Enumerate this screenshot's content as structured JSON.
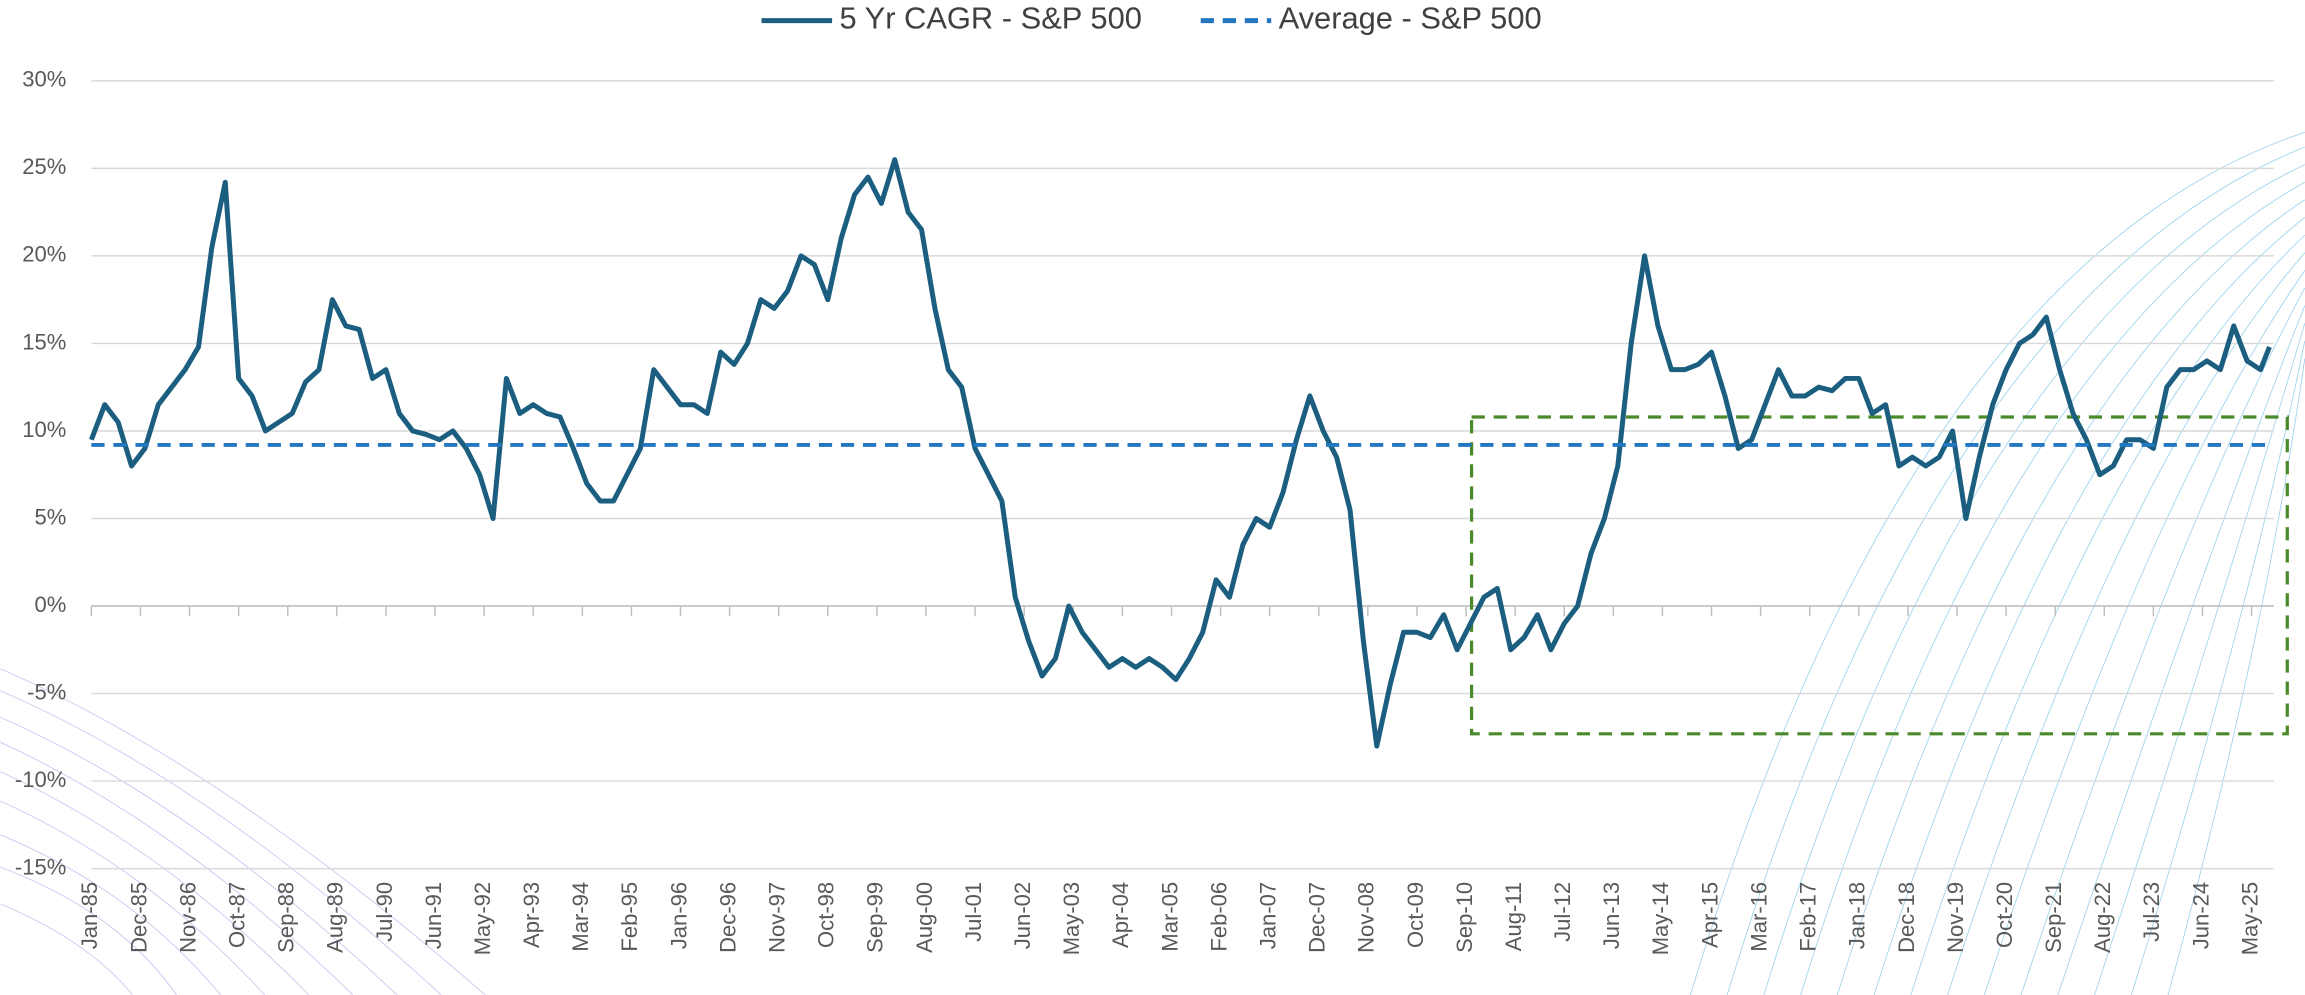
{
  "chart_data": {
    "type": "line",
    "x": [
      1985.0,
      1985.25,
      1985.5,
      1985.75,
      1986.0,
      1986.25,
      1986.5,
      1986.75,
      1987.0,
      1987.25,
      1987.5,
      1987.75,
      1988.0,
      1988.25,
      1988.5,
      1988.75,
      1989.0,
      1989.25,
      1989.5,
      1989.75,
      1990.0,
      1990.25,
      1990.5,
      1990.75,
      1991.0,
      1991.25,
      1991.5,
      1991.75,
      1992.0,
      1992.25,
      1992.5,
      1992.75,
      1993.0,
      1993.25,
      1993.5,
      1993.75,
      1994.0,
      1994.25,
      1994.5,
      1994.75,
      1995.0,
      1995.25,
      1995.5,
      1995.75,
      1996.0,
      1996.25,
      1996.5,
      1996.75,
      1997.0,
      1997.25,
      1997.5,
      1997.75,
      1998.0,
      1998.25,
      1998.5,
      1998.75,
      1999.0,
      1999.25,
      1999.5,
      1999.75,
      2000.0,
      2000.25,
      2000.5,
      2000.75,
      2001.0,
      2001.25,
      2001.5,
      2001.75,
      2002.0,
      2002.25,
      2002.5,
      2002.75,
      2003.0,
      2003.25,
      2003.5,
      2003.75,
      2004.0,
      2004.25,
      2004.5,
      2004.75,
      2005.0,
      2005.25,
      2005.5,
      2005.75,
      2006.0,
      2006.25,
      2006.5,
      2006.75,
      2007.0,
      2007.25,
      2007.5,
      2007.75,
      2008.0,
      2008.25,
      2008.5,
      2008.75,
      2009.0,
      2009.25,
      2009.5,
      2009.75,
      2010.0,
      2010.25,
      2010.5,
      2010.75,
      2011.0,
      2011.25,
      2011.5,
      2011.75,
      2012.0,
      2012.25,
      2012.5,
      2012.75,
      2013.0,
      2013.25,
      2013.5,
      2013.75,
      2014.0,
      2014.25,
      2014.5,
      2014.75,
      2015.0,
      2015.25,
      2015.5,
      2015.75,
      2016.0,
      2016.25,
      2016.5,
      2016.75,
      2017.0,
      2017.25,
      2017.5,
      2017.75,
      2018.0,
      2018.25,
      2018.5,
      2018.75,
      2019.0,
      2019.25,
      2019.5,
      2019.75,
      2020.0,
      2020.25,
      2020.5,
      2020.75,
      2021.0,
      2021.25,
      2021.5,
      2021.75,
      2022.0,
      2022.25,
      2022.5,
      2022.75,
      2023.0,
      2023.25,
      2023.5,
      2023.75,
      2024.0,
      2024.25,
      2024.5,
      2024.75,
      2025.0,
      2025.25,
      2025.5,
      2025.667
    ],
    "series": [
      {
        "name": "5 Yr CAGR - S&P 500",
        "color": "#1b5e80",
        "dash": false,
        "values": [
          9.5,
          11.5,
          10.5,
          8,
          9,
          11.5,
          12.5,
          13.5,
          14.8,
          20.5,
          24.2,
          13,
          12,
          10,
          10.5,
          11,
          12.8,
          13.5,
          17.5,
          16,
          15.8,
          13,
          13.5,
          11,
          10,
          9.8,
          9.5,
          10,
          9,
          7.5,
          5,
          13,
          11,
          11.5,
          11,
          10.8,
          9,
          7,
          6,
          6,
          7.5,
          9,
          13.5,
          12.5,
          11.5,
          11.5,
          11,
          14.5,
          13.8,
          15,
          17.5,
          17,
          18,
          20,
          19.5,
          17.5,
          21,
          23.5,
          24.5,
          23,
          25.5,
          22.5,
          21.5,
          17,
          13.5,
          12.5,
          9,
          7.5,
          6,
          0.5,
          -2,
          -4,
          -3,
          0,
          -1.5,
          -2.5,
          -3.5,
          -3,
          -3.5,
          -3,
          -3.5,
          -4.2,
          -3,
          -1.5,
          1.5,
          0.5,
          3.5,
          5,
          4.5,
          6.5,
          9.5,
          12,
          10,
          8.5,
          5.5,
          -2,
          -8,
          -4.5,
          -1.5,
          -1.5,
          -1.8,
          -0.5,
          -2.5,
          -1,
          0.5,
          1,
          -2.5,
          -1.8,
          -0.5,
          -2.5,
          -1,
          0,
          3,
          5,
          8,
          15,
          20,
          16,
          13.5,
          13.5,
          13.8,
          14.5,
          12,
          9,
          9.5,
          11.5,
          13.5,
          12,
          12,
          12.5,
          12.3,
          13,
          13,
          11,
          11.5,
          8,
          8.5,
          8,
          8.5,
          10,
          5,
          8.5,
          11.5,
          13.5,
          15,
          15.5,
          16.5,
          13.5,
          11,
          9.5,
          7.5,
          8,
          9.5,
          9.5,
          9,
          12.5,
          13.5,
          13.5,
          14,
          13.5,
          16,
          14,
          13.5,
          14.8
        ]
      },
      {
        "name": "Average - S&P 500",
        "color": "#2277c0",
        "dash": true,
        "x": [
          1985.0,
          2025.667
        ],
        "values": [
          9.2,
          9.2
        ]
      }
    ],
    "highlight": {
      "xlim": [
        2010.77,
        2026.0
      ],
      "ylim": [
        -7.3,
        10.8
      ],
      "color": "#4a8a2a"
    },
    "xlim": [
      1985.0,
      2025.75
    ],
    "xticks": [
      {
        "value": 1985.0,
        "label": "Jan-85"
      },
      {
        "value": 1985.917,
        "label": "Dec-85"
      },
      {
        "value": 1986.833,
        "label": "Nov-86"
      },
      {
        "value": 1987.75,
        "label": "Oct-87"
      },
      {
        "value": 1988.667,
        "label": "Sep-88"
      },
      {
        "value": 1989.583,
        "label": "Aug-89"
      },
      {
        "value": 1990.5,
        "label": "Jul-90"
      },
      {
        "value": 1991.417,
        "label": "Jun-91"
      },
      {
        "value": 1992.333,
        "label": "May-92"
      },
      {
        "value": 1993.25,
        "label": "Apr-93"
      },
      {
        "value": 1994.167,
        "label": "Mar-94"
      },
      {
        "value": 1995.083,
        "label": "Feb-95"
      },
      {
        "value": 1996.0,
        "label": "Jan-96"
      },
      {
        "value": 1996.917,
        "label": "Dec-96"
      },
      {
        "value": 1997.833,
        "label": "Nov-97"
      },
      {
        "value": 1998.75,
        "label": "Oct-98"
      },
      {
        "value": 1999.667,
        "label": "Sep-99"
      },
      {
        "value": 2000.583,
        "label": "Aug-00"
      },
      {
        "value": 2001.5,
        "label": "Jul-01"
      },
      {
        "value": 2002.417,
        "label": "Jun-02"
      },
      {
        "value": 2003.333,
        "label": "May-03"
      },
      {
        "value": 2004.25,
        "label": "Apr-04"
      },
      {
        "value": 2005.167,
        "label": "Mar-05"
      },
      {
        "value": 2006.083,
        "label": "Feb-06"
      },
      {
        "value": 2007.0,
        "label": "Jan-07"
      },
      {
        "value": 2007.917,
        "label": "Dec-07"
      },
      {
        "value": 2008.833,
        "label": "Nov-08"
      },
      {
        "value": 2009.75,
        "label": "Oct-09"
      },
      {
        "value": 2010.667,
        "label": "Sep-10"
      },
      {
        "value": 2011.583,
        "label": "Aug-11"
      },
      {
        "value": 2012.5,
        "label": "Jul-12"
      },
      {
        "value": 2013.417,
        "label": "Jun-13"
      },
      {
        "value": 2014.333,
        "label": "May-14"
      },
      {
        "value": 2015.25,
        "label": "Apr-15"
      },
      {
        "value": 2016.167,
        "label": "Mar-16"
      },
      {
        "value": 2017.083,
        "label": "Feb-17"
      },
      {
        "value": 2018.0,
        "label": "Jan-18"
      },
      {
        "value": 2018.917,
        "label": "Dec-18"
      },
      {
        "value": 2019.833,
        "label": "Nov-19"
      },
      {
        "value": 2020.75,
        "label": "Oct-20"
      },
      {
        "value": 2021.667,
        "label": "Sep-21"
      },
      {
        "value": 2022.583,
        "label": "Aug-22"
      },
      {
        "value": 2023.5,
        "label": "Jul-23"
      },
      {
        "value": 2024.417,
        "label": "Jun-24"
      },
      {
        "value": 2025.333,
        "label": "May-25"
      }
    ],
    "ylim": [
      -15,
      30
    ],
    "yticks": [
      {
        "value": -15,
        "label": "-15%"
      },
      {
        "value": -10,
        "label": "-10%"
      },
      {
        "value": -5,
        "label": "-5%"
      },
      {
        "value": 0,
        "label": "0%"
      },
      {
        "value": 5,
        "label": "5%"
      },
      {
        "value": 10,
        "label": "10%"
      },
      {
        "value": 15,
        "label": "15%"
      },
      {
        "value": 20,
        "label": "20%"
      },
      {
        "value": 25,
        "label": "25%"
      },
      {
        "value": 30,
        "label": "30%"
      }
    ],
    "grid": true,
    "legend": "top"
  }
}
